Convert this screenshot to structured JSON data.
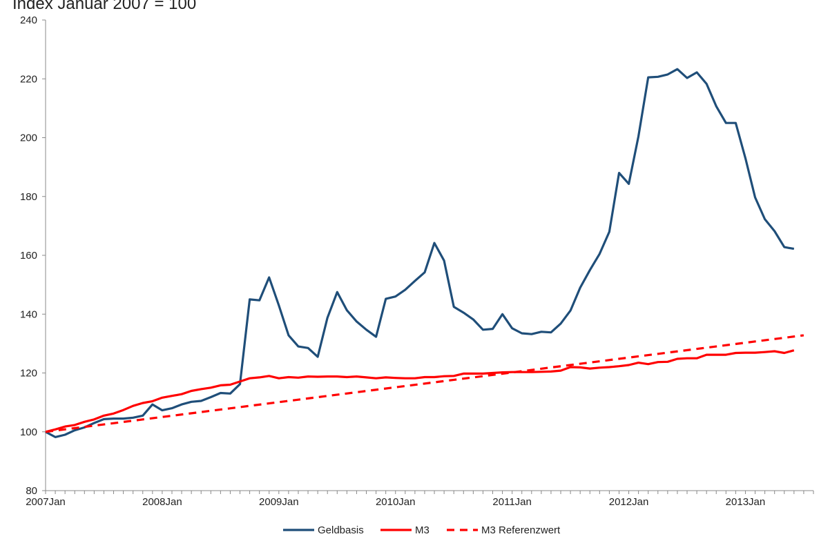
{
  "chart_data": {
    "type": "line",
    "title": "Index Januar 2007 = 100",
    "xlabel": "",
    "ylabel": "",
    "ylim": [
      80,
      240
    ],
    "yticks": [
      80,
      100,
      120,
      140,
      160,
      180,
      200,
      220,
      240
    ],
    "xticks": [
      "2007Jan",
      "2008Jan",
      "2009Jan",
      "2010Jan",
      "2011Jan",
      "2012Jan",
      "2013Jan"
    ],
    "grid": false,
    "legend": "bottom",
    "x_start": "2007Jan",
    "x_step": "month",
    "series": [
      {
        "name": "Geldbasis",
        "color": "#1f4e79",
        "style": "solid",
        "values": [
          100,
          98.2,
          99,
          100.5,
          101.5,
          103,
          104.3,
          104.5,
          104.5,
          104.8,
          105.5,
          109.3,
          107.3,
          108,
          109.3,
          110.2,
          110.5,
          111.8,
          113.2,
          113,
          116.2,
          145,
          144.7,
          152.5,
          143,
          132.8,
          129,
          128.5,
          125.5,
          138.8,
          147.5,
          141.3,
          137.5,
          134.7,
          132.3,
          145.2,
          146,
          148.3,
          151.3,
          154.2,
          164.2,
          158.2,
          142.5,
          140.5,
          138.2,
          134.7,
          135,
          140,
          135.2,
          133.5,
          133.2,
          134,
          133.8,
          136.8,
          141.2,
          149,
          155,
          160.5,
          168,
          188,
          184.3,
          200.5,
          220.5,
          220.7,
          221.5,
          223.3,
          220.3,
          222.2,
          218.3,
          210.7,
          205,
          205,
          193,
          179.7,
          172.3,
          168.2,
          162.8,
          162.2
        ]
      },
      {
        "name": "M3",
        "color": "#ff0000",
        "style": "solid",
        "values": [
          100,
          100.8,
          101.8,
          102.3,
          103.4,
          104.2,
          105.5,
          106.2,
          107.4,
          108.8,
          109.8,
          110.4,
          111.6,
          112.2,
          112.8,
          113.9,
          114.5,
          115,
          115.8,
          116,
          117.1,
          118.2,
          118.5,
          119,
          118.2,
          118.6,
          118.4,
          118.8,
          118.7,
          118.8,
          118.8,
          118.6,
          118.8,
          118.5,
          118.2,
          118.5,
          118.3,
          118.2,
          118.2,
          118.6,
          118.6,
          118.9,
          119,
          119.8,
          119.8,
          119.8,
          120,
          120.2,
          120.3,
          120.3,
          120.3,
          120.4,
          120.5,
          120.8,
          122,
          121.9,
          121.5,
          121.8,
          122,
          122.3,
          122.7,
          123.5,
          123,
          123.7,
          123.8,
          124.8,
          125,
          125,
          126.2,
          126.2,
          126.2,
          126.8,
          126.9,
          126.9,
          127.1,
          127.4,
          126.8,
          127.7
        ]
      },
      {
        "name": "M3 Referenzwert",
        "color": "#ff0000",
        "style": "dashed",
        "values": [
          100,
          132.8
        ]
      }
    ]
  }
}
